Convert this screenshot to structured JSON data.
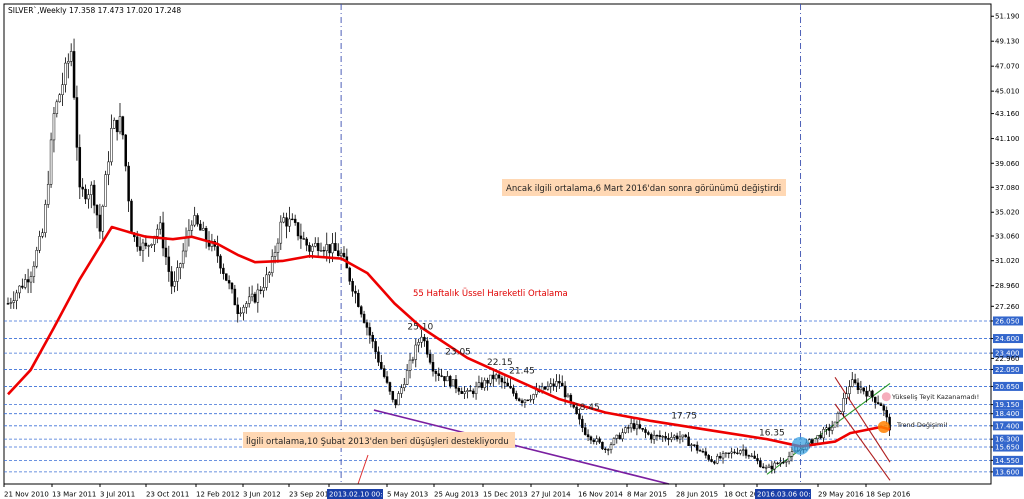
{
  "header": {
    "symbol": "SILVER`,Weekly",
    "ohlc": "17.358 17.473 17.020 17.248"
  },
  "colors": {
    "ema": "#ee0000",
    "price": "#000000",
    "support": "#7a1fa0",
    "up_channel": "#2a9a2a",
    "down_channel": "#b02020",
    "level_line": "#3a6fd6",
    "label_bg": "#3366cc",
    "note_bg": "#ffd8b4",
    "marker": "#3aa0e0",
    "cross": "#ff8000"
  },
  "chart_data": {
    "type": "line",
    "title": "SILVER`,Weekly",
    "series": [
      {
        "name": "SILVER`,Weekly",
        "x": [
          "2010-11-21",
          "2011-01-15",
          "2011-02-15",
          "2011-03-13",
          "2011-04-25",
          "2011-05-15",
          "2011-06-15",
          "2011-07-03",
          "2011-08-01",
          "2011-08-25",
          "2011-09-20",
          "2011-10-23",
          "2011-11-25",
          "2011-12-28",
          "2012-02-12",
          "2012-04-15",
          "2012-06-03",
          "2012-07-15",
          "2012-08-20",
          "2012-09-20",
          "2012-10-15",
          "2012-11-25",
          "2012-12-20",
          "2013-02-10",
          "2013-03-15",
          "2013-04-15",
          "2013-06-20",
          "2013-08-25",
          "2013-09-25",
          "2013-12-15",
          "2014-02-20",
          "2014-04-25",
          "2014-07-27",
          "2014-09-25",
          "2014-11-16",
          "2015-01-20",
          "2015-03-08",
          "2015-05-20",
          "2015-08-05",
          "2015-10-15",
          "2015-12-15",
          "2016-01-20",
          "2016-03-06",
          "2016-05-29",
          "2016-07-05",
          "2016-08-10",
          "2016-09-18",
          "2016-10-10"
        ],
        "values": [
          27.5,
          30.0,
          33.5,
          43.0,
          48.5,
          36.5,
          37.0,
          33.5,
          42.0,
          42.5,
          33.0,
          32.0,
          34.0,
          28.5,
          34.5,
          31.5,
          27.0,
          28.0,
          30.0,
          34.5,
          34.0,
          32.0,
          32.5,
          31.5,
          28.5,
          25.5,
          19.0,
          25.0,
          22.0,
          20.0,
          21.5,
          19.5,
          21.0,
          17.0,
          15.5,
          17.5,
          16.5,
          16.5,
          14.5,
          15.5,
          13.8,
          14.5,
          15.5,
          17.5,
          21.0,
          20.3,
          19.2,
          17.2
        ]
      },
      {
        "name": "55 Haftalık Üssel Hareketli Ortalama",
        "x": [
          "2010-11-21",
          "2011-01-15",
          "2011-03-13",
          "2011-05-15",
          "2011-07-03",
          "2011-08-01",
          "2011-09-20",
          "2011-10-23",
          "2011-12-28",
          "2012-02-12",
          "2012-04-15",
          "2012-06-03",
          "2012-07-15",
          "2012-09-20",
          "2012-11-25",
          "2013-02-10",
          "2013-04-15",
          "2013-06-20",
          "2013-08-25",
          "2013-12-15",
          "2014-04-25",
          "2014-07-27",
          "2014-11-16",
          "2015-03-08",
          "2015-08-05",
          "2015-12-15",
          "2016-03-06",
          "2016-05-29",
          "2016-07-05",
          "2016-09-18",
          "2016-10-10"
        ],
        "values": [
          20.0,
          22.0,
          25.5,
          29.5,
          32.2,
          33.8,
          33.3,
          33.0,
          32.8,
          33.0,
          32.4,
          31.5,
          30.9,
          31.0,
          31.4,
          31.2,
          30.0,
          27.5,
          25.5,
          23.0,
          21.0,
          19.6,
          18.5,
          17.8,
          17.0,
          16.3,
          15.7,
          16.1,
          16.8,
          17.3,
          17.1
        ]
      }
    ],
    "yticks": [
      51.19,
      49.13,
      47.07,
      45.01,
      43.16,
      41.1,
      39.06,
      37.08,
      35.02,
      33.06,
      31.02,
      28.96,
      27.26,
      26.05,
      24.6,
      23.4,
      22.96,
      22.05,
      20.65,
      19.15,
      18.4,
      17.4,
      16.3,
      15.65,
      14.55,
      13.6
    ],
    "xticks": [
      "21 Nov 2010",
      "13 Mar 2011",
      "3 Jul 2011",
      "23 Oct 2011",
      "12 Feb 2012",
      "3 Jun 2012",
      "23 Sep 2012",
      "2013.02.10 00:00",
      "5 May 2013",
      "25 Aug 2013",
      "15 Dec 2013",
      "27 Jul 2014",
      "16 Nov 2014",
      "8 Mar 2015",
      "28 Jun 2015",
      "18 Oct 2015",
      "2016.03.06 00:00",
      "29 May 2016",
      "18 Sep 2016"
    ],
    "ylim": [
      12.6,
      52.2
    ],
    "horizontal_levels": [
      26.05,
      24.6,
      23.4,
      22.05,
      20.65,
      19.15,
      18.4,
      17.4,
      16.3,
      15.65,
      14.55,
      13.6
    ],
    "vertical_markers": [
      "2013.02.10 00:00",
      "2016.03.06 00:00"
    ],
    "peak_labels": [
      {
        "text": "25.10",
        "x": "2013-08-15",
        "y": 25.1
      },
      {
        "text": "23.05",
        "x": "2013-11-15",
        "y": 23.05
      },
      {
        "text": "22.15",
        "x": "2014-02-25",
        "y": 22.15
      },
      {
        "text": "21.45",
        "x": "2014-04-20",
        "y": 21.45
      },
      {
        "text": "18.45",
        "x": "2014-09-25",
        "y": 18.45
      },
      {
        "text": "17.75",
        "x": "2015-05-20",
        "y": 17.75
      },
      {
        "text": "16.35",
        "x": "2015-12-20",
        "y": 16.35
      }
    ],
    "annotations": [
      "Ancak ilgili ortalama,6 Mart 2016'dan sonra görünümü değiştirdi",
      "55 Haftalık Üssel Hareketli Ortalama",
      "İlgili ortalama,10 Şubat 2013'den beri düşüşleri destekliyordu",
      "Yükseliş Teyit Kazanamadı!",
      "Trend Değişimi!"
    ],
    "grid": false,
    "legend": "none"
  }
}
